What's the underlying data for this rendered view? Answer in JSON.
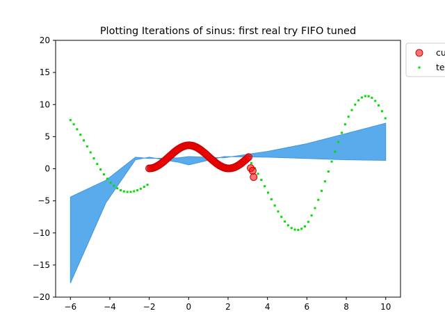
{
  "chart_data": {
    "type": "scatter",
    "title": "Plotting Iterations of sinus: first real try FIFO tuned",
    "xlabel": "",
    "ylabel": "",
    "xlim": [
      -6.75,
      10.75
    ],
    "ylim": [
      -20,
      20
    ],
    "x_ticks": [
      -6,
      -4,
      -2,
      0,
      2,
      4,
      6,
      8,
      10
    ],
    "y_ticks": [
      -20,
      -15,
      -10,
      -5,
      0,
      5,
      10,
      15,
      20
    ],
    "grid": false,
    "legend": {
      "placement": "outside-top-right",
      "entries": [
        "cu",
        "te"
      ]
    },
    "series": [
      {
        "name": "cu",
        "kind": "large-markers",
        "color": "#ff0000",
        "edge_color": "#cc0000",
        "x_range": [
          -2.0,
          3.3
        ],
        "points": [
          [
            3.15,
            0.1
          ],
          [
            3.25,
            -0.3
          ],
          [
            3.3,
            -1.3
          ]
        ],
        "y_function": "1.8*sin(1.55*(x+1))+1.85"
      },
      {
        "name": "te",
        "kind": "small-points",
        "color": "#00dd00",
        "x_range": [
          -6.0,
          10.0
        ],
        "x_step": 0.17
      }
    ],
    "band": {
      "color": "#5aabec",
      "edge": "#3f97e0",
      "upper": [
        [
          -6,
          -4.4
        ],
        [
          -4.2,
          -1.8
        ],
        [
          -2.7,
          1.8
        ],
        [
          -2.0,
          1.6
        ],
        [
          -0.5,
          1.7
        ],
        [
          0,
          1.9
        ],
        [
          1.8,
          1.7
        ],
        [
          4,
          2.7
        ],
        [
          6,
          3.9
        ],
        [
          8,
          5.5
        ],
        [
          10,
          7.1
        ]
      ],
      "lower": [
        [
          -6,
          -17.8
        ],
        [
          -4.2,
          -5.3
        ],
        [
          -2.7,
          1.4
        ],
        [
          -2.0,
          1.8
        ],
        [
          -0.5,
          1.0
        ],
        [
          0,
          0.6
        ],
        [
          1.8,
          1.9
        ],
        [
          4,
          1.8
        ],
        [
          6,
          1.6
        ],
        [
          8,
          1.4
        ],
        [
          10,
          1.3
        ]
      ]
    }
  }
}
